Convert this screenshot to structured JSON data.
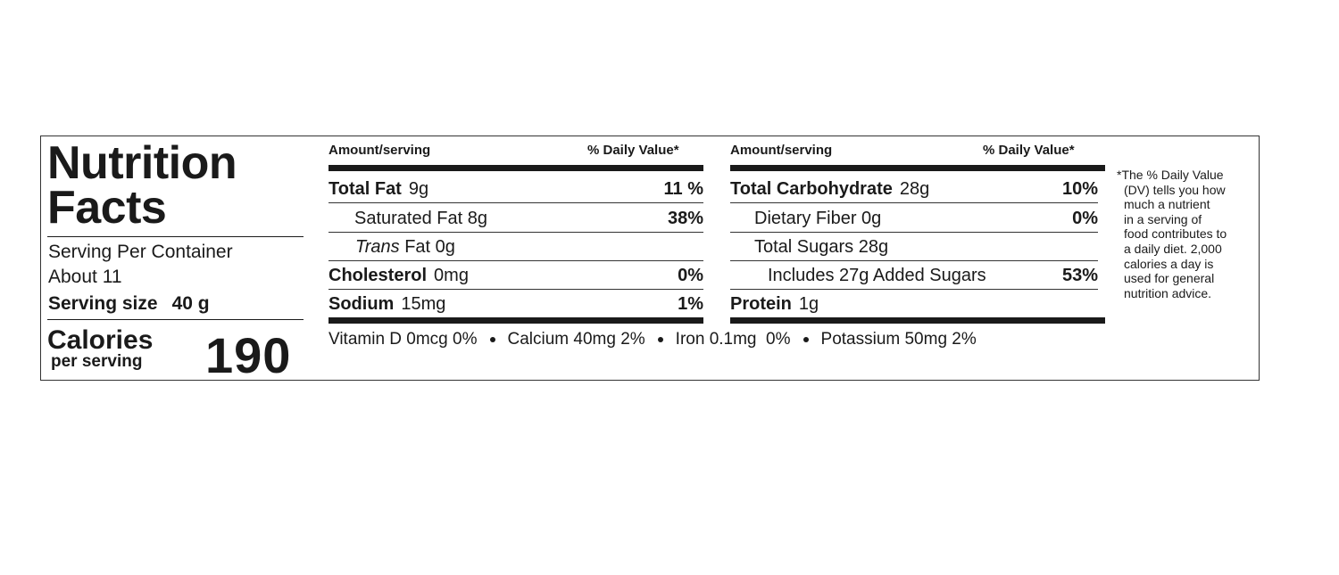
{
  "title": [
    "Nutrition",
    "Facts"
  ],
  "servings": {
    "per_container": "Serving Per Container",
    "about": "About 11",
    "size_label": "Serving size",
    "size_value": "40 g"
  },
  "calories": {
    "label": "Calories",
    "sub": "per serving",
    "value": "190"
  },
  "tables": [
    {
      "header": [
        "Amount/serving",
        "% Daily Value*"
      ],
      "rows": [
        {
          "name": "Total Fat",
          "amount": "9g",
          "dv": "11 %"
        },
        {
          "name": "Saturated Fat",
          "amount": "8g",
          "dv": "38%"
        },
        {
          "name_italic": "Trans",
          "name": "Fat",
          "amount": "0g"
        },
        {
          "name": "Cholesterol",
          "amount": "0mg",
          "dv": "0%"
        },
        {
          "name": "Sodium",
          "amount": "15mg",
          "dv": "1%"
        }
      ]
    },
    {
      "header": [
        "Amount/serving",
        "% Daily Value*"
      ],
      "rows": [
        {
          "name": "Total Carbohydrate",
          "amount": "28g",
          "dv": "10%"
        },
        {
          "name": "Dietary Fiber",
          "amount": "0g",
          "dv": "0%"
        },
        {
          "name": "Total Sugars",
          "amount": "28g"
        },
        {
          "name": "Includes 27g Added Sugars",
          "dv": "53%"
        },
        {
          "name": "Protein",
          "amount": "1g"
        }
      ]
    }
  ],
  "vitamins": [
    "Vitamin D 0mcg 0%",
    "Calcium 40mg 2%",
    "Iron 0.1mg  0%",
    "Potassium 50mg 2%"
  ],
  "footnote": [
    "*The % Daily Value",
    "(DV) tells you how",
    "much a nutrient",
    "in a serving of",
    "food contributes to",
    "a daily diet. 2,000",
    "calories a day is",
    "used for general",
    "nutrition advice."
  ]
}
